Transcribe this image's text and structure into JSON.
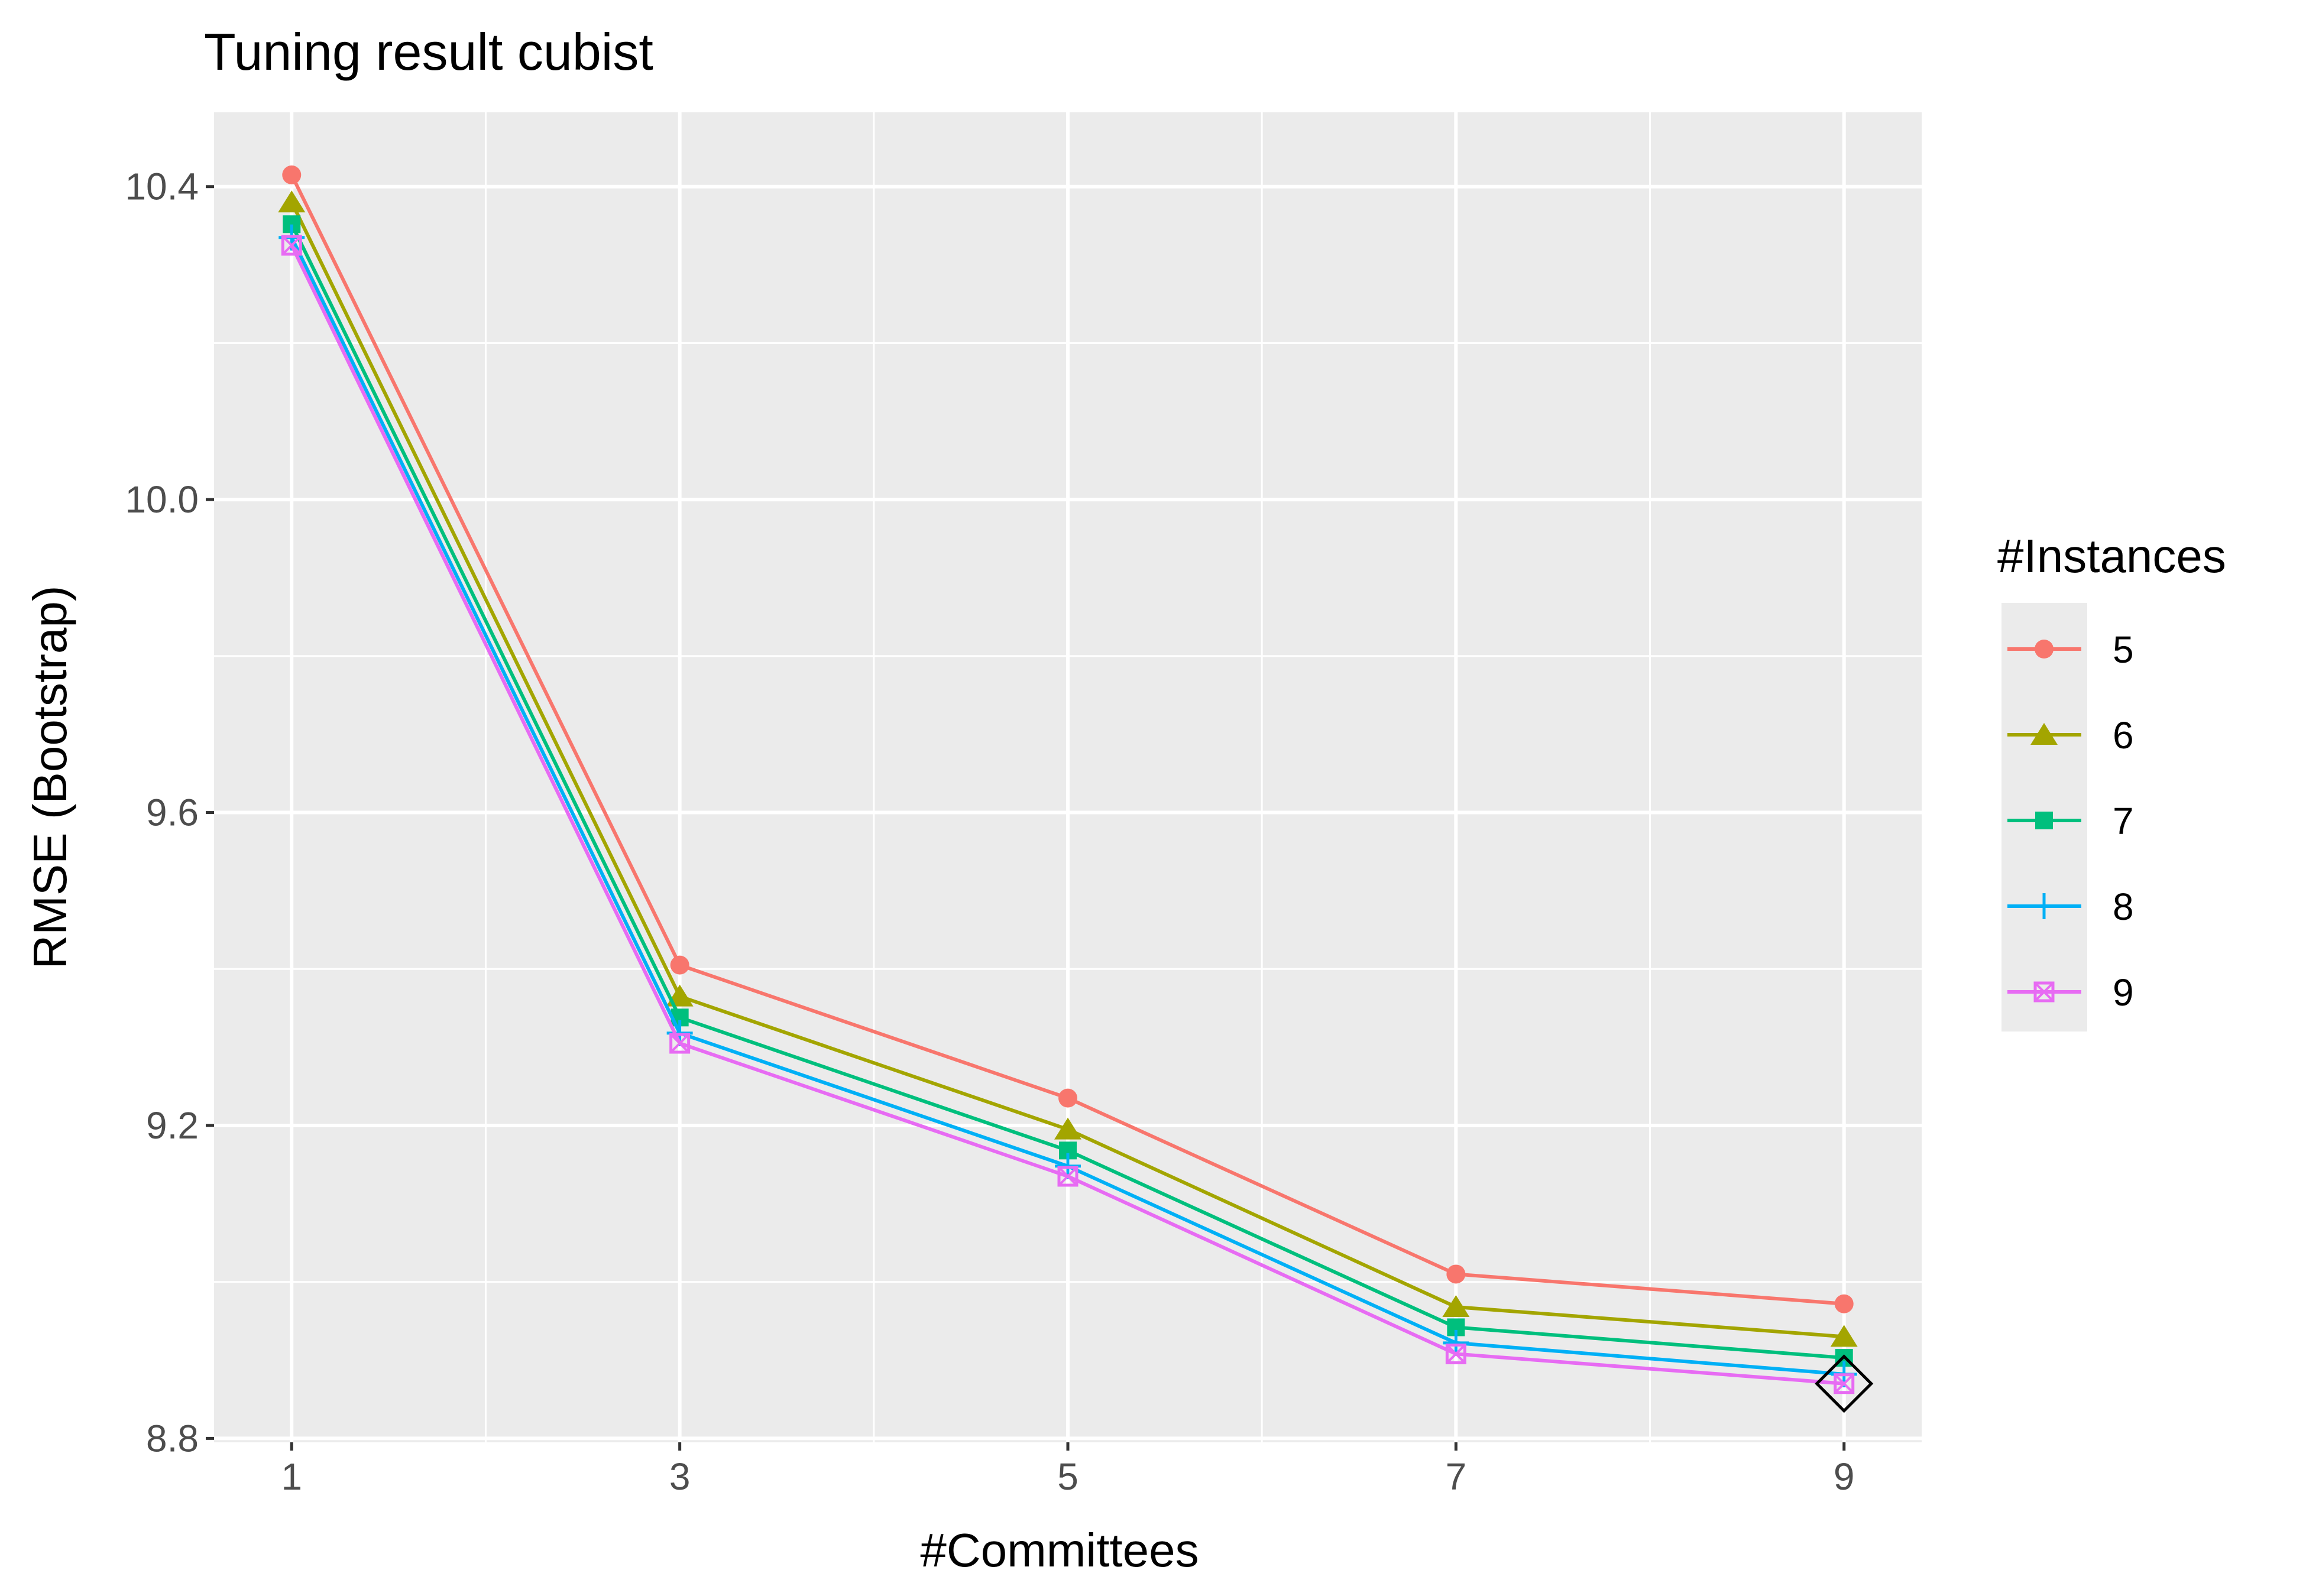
{
  "chart_data": {
    "type": "line",
    "title": "Tuning result cubist",
    "xlabel": "#Committees",
    "ylabel": "RMSE (Bootstrap)",
    "x": [
      1,
      3,
      5,
      7,
      9
    ],
    "x_ticks": [
      "1",
      "3",
      "5",
      "7",
      "9"
    ],
    "y_ticks": [
      "8.8",
      "9.2",
      "9.6",
      "10.0",
      "10.4"
    ],
    "xlim": [
      0.6,
      9.4
    ],
    "ylim": [
      8.795,
      10.495
    ],
    "grid": true,
    "legend": {
      "title": "#Instances",
      "position": "right"
    },
    "series": [
      {
        "name": "5",
        "color": "#F8766D",
        "marker": "circle",
        "values": [
          10.415,
          9.405,
          9.235,
          9.01,
          8.972
        ]
      },
      {
        "name": "6",
        "color": "#A3A500",
        "marker": "triangle",
        "values": [
          10.38,
          9.365,
          9.195,
          8.968,
          8.93
        ]
      },
      {
        "name": "7",
        "color": "#00BF7D",
        "marker": "square",
        "values": [
          10.352,
          9.338,
          9.168,
          8.942,
          8.903
        ]
      },
      {
        "name": "8",
        "color": "#00B0F6",
        "marker": "plus",
        "values": [
          10.335,
          9.318,
          9.148,
          8.922,
          8.882
        ]
      },
      {
        "name": "9",
        "color": "#E76BF3",
        "marker": "boxx",
        "values": [
          10.325,
          9.305,
          9.135,
          8.908,
          8.87
        ]
      }
    ],
    "highlight": {
      "x": 9,
      "y": 8.87,
      "marker": "diamond",
      "color": "#000000"
    }
  },
  "style": {
    "panel_background": "#EBEBEB",
    "gridline_color": "#FFFFFF"
  }
}
